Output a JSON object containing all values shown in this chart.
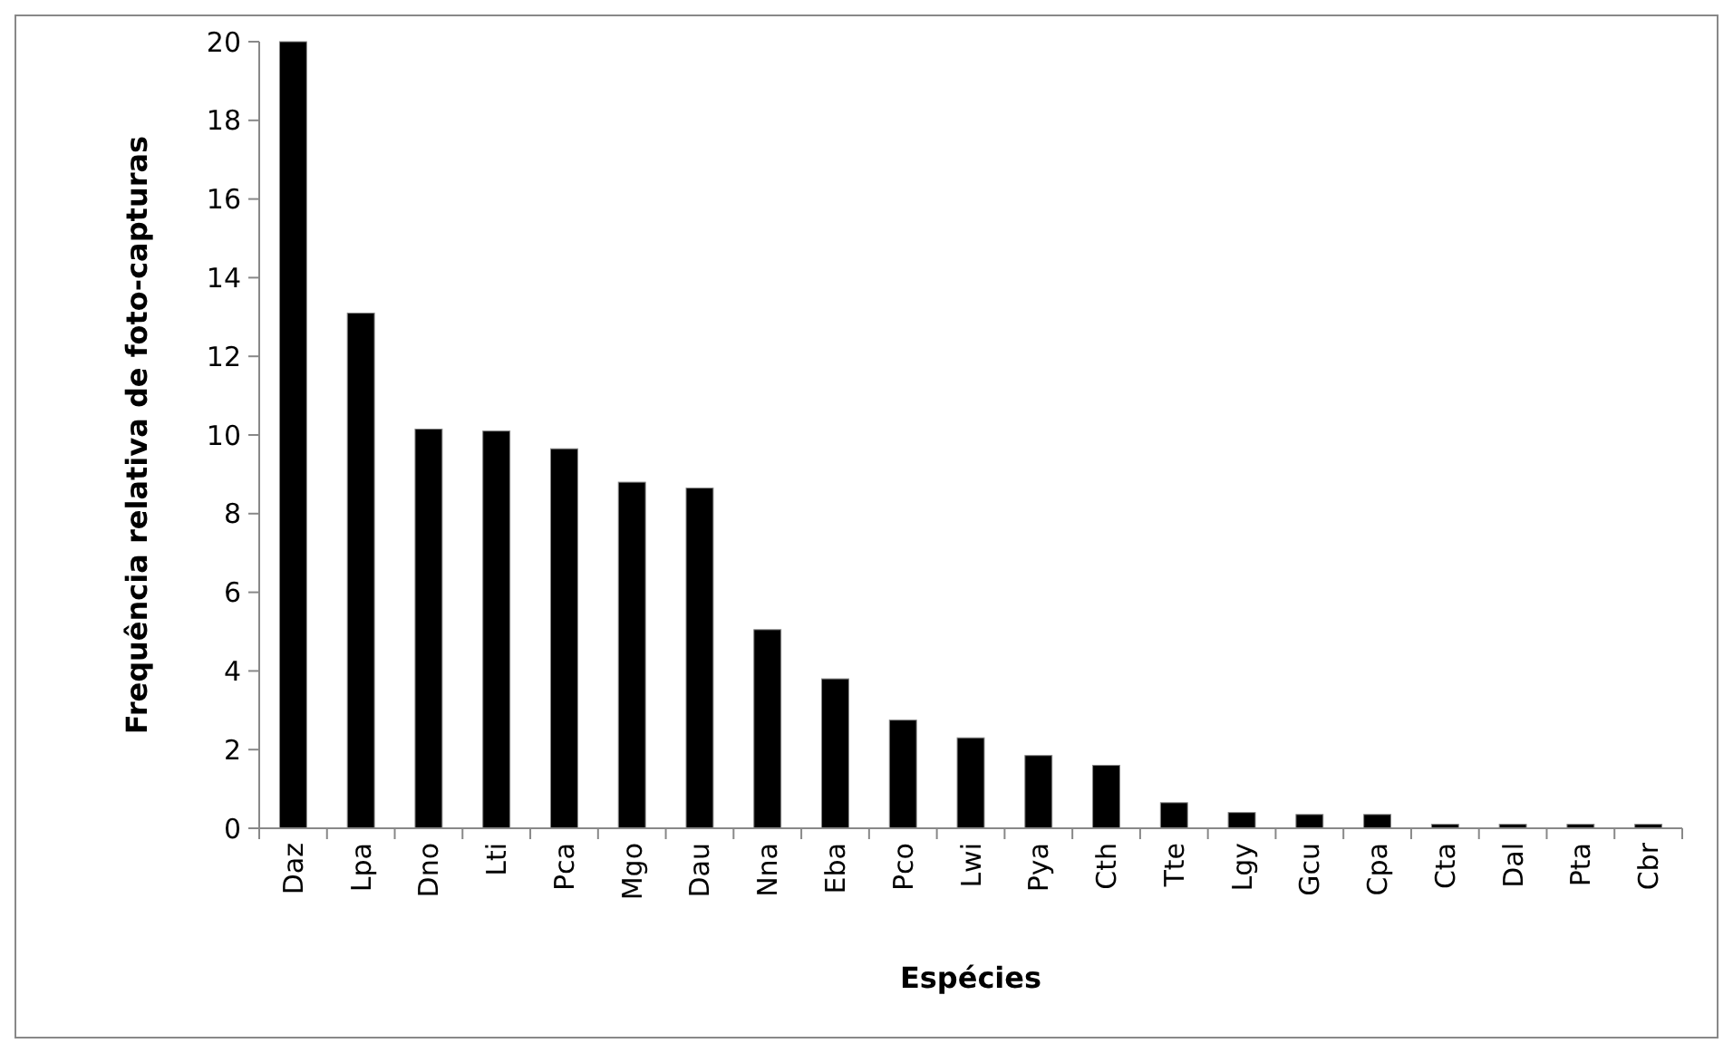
{
  "chart_data": {
    "type": "bar",
    "xlabel": "Espécies",
    "ylabel": "Frequência relativa de foto-capturas",
    "categories": [
      "Daz",
      "Lpa",
      "Dno",
      "Lti",
      "Pca",
      "Mgo",
      "Dau",
      "Nna",
      "Eba",
      "Pco",
      "Lwi",
      "Pya",
      "Cth",
      "Tte",
      "Lgy",
      "Gcu",
      "Cpa",
      "Cta",
      "Dal",
      "Pta",
      "Cbr"
    ],
    "values": [
      20,
      13.1,
      10.15,
      10.1,
      9.65,
      8.8,
      8.65,
      5.05,
      3.8,
      2.75,
      2.3,
      1.85,
      1.6,
      0.65,
      0.4,
      0.35,
      0.35,
      0.1,
      0.1,
      0.1,
      0.1
    ],
    "color": "#000000",
    "ylim": [
      0,
      20
    ],
    "yticks": [
      0,
      2,
      4,
      6,
      8,
      10,
      12,
      14,
      16,
      18,
      20
    ],
    "grid": false
  }
}
